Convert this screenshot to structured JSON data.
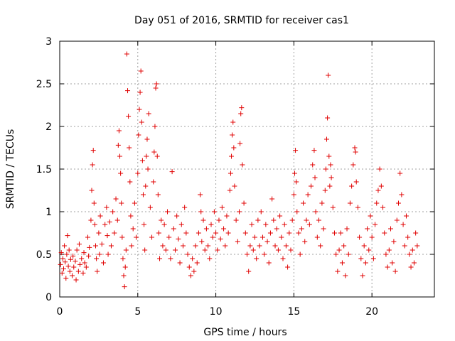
{
  "chart_data": {
    "type": "scatter",
    "title": "Day 051 of 2016, SRMTID for receiver cas1",
    "xlabel": "GPS time / hours",
    "ylabel": "SRMTID / TECUs",
    "xlim": [
      0,
      24
    ],
    "ylim": [
      0,
      3
    ],
    "xticks": [
      0,
      5,
      10,
      15,
      20
    ],
    "yticks": [
      0,
      0.5,
      1,
      1.5,
      2,
      2.5,
      3
    ],
    "xtick_labels": [
      "0",
      "5",
      "10",
      "15",
      "20"
    ],
    "ytick_labels": [
      "0",
      "0.5",
      "1",
      "1.5",
      "2",
      "2.5",
      "3"
    ],
    "grid": true,
    "marker": "+",
    "color": "#e00000",
    "series": [
      {
        "name": "SRMTID",
        "points": [
          [
            0.05,
            0.38
          ],
          [
            0.1,
            0.52
          ],
          [
            0.15,
            0.28
          ],
          [
            0.2,
            0.45
          ],
          [
            0.25,
            0.33
          ],
          [
            0.3,
            0.6
          ],
          [
            0.35,
            0.41
          ],
          [
            0.4,
            0.22
          ],
          [
            0.45,
            0.5
          ],
          [
            0.5,
            0.72
          ],
          [
            0.55,
            0.36
          ],
          [
            0.6,
            0.55
          ],
          [
            0.65,
            0.3
          ],
          [
            0.7,
            0.44
          ],
          [
            0.8,
            0.25
          ],
          [
            0.85,
            0.48
          ],
          [
            0.9,
            0.35
          ],
          [
            1.0,
            0.42
          ],
          [
            1.05,
            0.2
          ],
          [
            1.1,
            0.55
          ],
          [
            1.2,
            0.3
          ],
          [
            1.25,
            0.62
          ],
          [
            1.3,
            0.38
          ],
          [
            1.4,
            0.45
          ],
          [
            1.5,
            0.28
          ],
          [
            1.55,
            0.52
          ],
          [
            1.6,
            0.4
          ],
          [
            1.7,
            0.35
          ],
          [
            1.8,
            0.7
          ],
          [
            1.85,
            0.48
          ],
          [
            1.9,
            0.58
          ],
          [
            2.0,
            0.9
          ],
          [
            2.05,
            1.25
          ],
          [
            2.1,
            1.55
          ],
          [
            2.15,
            1.72
          ],
          [
            2.2,
            1.1
          ],
          [
            2.25,
            0.85
          ],
          [
            2.3,
            0.6
          ],
          [
            2.35,
            0.45
          ],
          [
            2.4,
            0.3
          ],
          [
            2.5,
            0.75
          ],
          [
            2.55,
            0.5
          ],
          [
            2.6,
            0.95
          ],
          [
            2.7,
            0.62
          ],
          [
            2.8,
            0.4
          ],
          [
            2.9,
            0.85
          ],
          [
            3.0,
            1.05
          ],
          [
            3.05,
            0.72
          ],
          [
            3.1,
            0.5
          ],
          [
            3.2,
            0.88
          ],
          [
            3.3,
            0.6
          ],
          [
            3.4,
            1.0
          ],
          [
            3.5,
            0.75
          ],
          [
            3.6,
            1.15
          ],
          [
            3.7,
            0.9
          ],
          [
            3.75,
            1.78
          ],
          [
            3.8,
            1.95
          ],
          [
            3.85,
            1.65
          ],
          [
            3.9,
            1.45
          ],
          [
            3.95,
            1.1
          ],
          [
            4.0,
            0.7
          ],
          [
            4.05,
            0.45
          ],
          [
            4.1,
            0.25
          ],
          [
            4.15,
            0.12
          ],
          [
            4.2,
            0.35
          ],
          [
            4.25,
            0.55
          ],
          [
            4.3,
            2.85
          ],
          [
            4.35,
            2.42
          ],
          [
            4.4,
            2.12
          ],
          [
            4.45,
            1.75
          ],
          [
            4.5,
            1.35
          ],
          [
            4.55,
            0.95
          ],
          [
            4.6,
            0.6
          ],
          [
            4.7,
            0.8
          ],
          [
            4.8,
            1.1
          ],
          [
            4.9,
            0.7
          ],
          [
            5.0,
            1.45
          ],
          [
            5.05,
            1.9
          ],
          [
            5.1,
            2.2
          ],
          [
            5.15,
            2.4
          ],
          [
            5.2,
            2.65
          ],
          [
            5.25,
            2.05
          ],
          [
            5.3,
            1.6
          ],
          [
            5.35,
            1.2
          ],
          [
            5.4,
            0.85
          ],
          [
            5.45,
            0.55
          ],
          [
            5.5,
            1.3
          ],
          [
            5.55,
            1.65
          ],
          [
            5.6,
            1.85
          ],
          [
            5.65,
            1.5
          ],
          [
            5.7,
            2.15
          ],
          [
            5.8,
            1.05
          ],
          [
            5.9,
            0.7
          ],
          [
            6.0,
            1.35
          ],
          [
            6.05,
            1.7
          ],
          [
            6.1,
            2.0
          ],
          [
            6.15,
            2.45
          ],
          [
            6.2,
            2.5
          ],
          [
            6.25,
            1.65
          ],
          [
            6.3,
            1.2
          ],
          [
            6.35,
            0.75
          ],
          [
            6.4,
            0.45
          ],
          [
            6.5,
            0.9
          ],
          [
            6.6,
            0.6
          ],
          [
            6.7,
            0.85
          ],
          [
            6.8,
            0.55
          ],
          [
            6.9,
            1.0
          ],
          [
            7.0,
            0.7
          ],
          [
            7.1,
            0.45
          ],
          [
            7.2,
            1.47
          ],
          [
            7.3,
            0.8
          ],
          [
            7.4,
            0.55
          ],
          [
            7.5,
            0.95
          ],
          [
            7.6,
            0.68
          ],
          [
            7.7,
            0.4
          ],
          [
            7.8,
            0.85
          ],
          [
            7.9,
            0.6
          ],
          [
            8.0,
            1.05
          ],
          [
            8.1,
            0.75
          ],
          [
            8.2,
            0.5
          ],
          [
            8.3,
            0.35
          ],
          [
            8.4,
            0.25
          ],
          [
            8.5,
            0.45
          ],
          [
            8.6,
            0.3
          ],
          [
            8.7,
            0.6
          ],
          [
            8.8,
            0.4
          ],
          [
            8.9,
            0.75
          ],
          [
            9.0,
            1.2
          ],
          [
            9.05,
            1.0
          ],
          [
            9.1,
            0.65
          ],
          [
            9.2,
            0.9
          ],
          [
            9.3,
            0.55
          ],
          [
            9.4,
            0.8
          ],
          [
            9.5,
            0.6
          ],
          [
            9.6,
            0.45
          ],
          [
            9.7,
            0.85
          ],
          [
            9.8,
            0.7
          ],
          [
            9.9,
            1.0
          ],
          [
            10.0,
            0.75
          ],
          [
            10.1,
            0.55
          ],
          [
            10.2,
            0.9
          ],
          [
            10.3,
            0.68
          ],
          [
            10.4,
            1.05
          ],
          [
            10.5,
            0.8
          ],
          [
            10.6,
            0.6
          ],
          [
            10.7,
            0.95
          ],
          [
            10.8,
            0.75
          ],
          [
            10.9,
            1.25
          ],
          [
            10.95,
            1.45
          ],
          [
            11.0,
            1.65
          ],
          [
            11.05,
            1.9
          ],
          [
            11.1,
            2.05
          ],
          [
            11.15,
            1.75
          ],
          [
            11.2,
            1.3
          ],
          [
            11.3,
            0.9
          ],
          [
            11.4,
            0.65
          ],
          [
            11.5,
            1.0
          ],
          [
            11.55,
            1.8
          ],
          [
            11.6,
            2.15
          ],
          [
            11.65,
            2.22
          ],
          [
            11.7,
            1.55
          ],
          [
            11.8,
            1.1
          ],
          [
            11.9,
            0.75
          ],
          [
            12.0,
            0.5
          ],
          [
            12.1,
            0.3
          ],
          [
            12.2,
            0.6
          ],
          [
            12.3,
            0.85
          ],
          [
            12.4,
            0.55
          ],
          [
            12.5,
            0.7
          ],
          [
            12.6,
            0.45
          ],
          [
            12.7,
            0.9
          ],
          [
            12.8,
            0.6
          ],
          [
            12.9,
            1.0
          ],
          [
            13.0,
            0.7
          ],
          [
            13.1,
            0.5
          ],
          [
            13.2,
            0.85
          ],
          [
            13.3,
            0.65
          ],
          [
            13.4,
            0.4
          ],
          [
            13.5,
            0.75
          ],
          [
            13.6,
            1.15
          ],
          [
            13.7,
            0.9
          ],
          [
            13.8,
            0.6
          ],
          [
            13.9,
            0.8
          ],
          [
            14.0,
            0.55
          ],
          [
            14.1,
            0.95
          ],
          [
            14.2,
            0.7
          ],
          [
            14.3,
            0.45
          ],
          [
            14.4,
            0.85
          ],
          [
            14.5,
            0.6
          ],
          [
            14.6,
            0.35
          ],
          [
            14.7,
            0.75
          ],
          [
            14.8,
            0.55
          ],
          [
            14.9,
            0.9
          ],
          [
            15.0,
            1.2
          ],
          [
            15.05,
            1.45
          ],
          [
            15.1,
            1.72
          ],
          [
            15.15,
            1.35
          ],
          [
            15.2,
            1.0
          ],
          [
            15.3,
            0.75
          ],
          [
            15.4,
            0.5
          ],
          [
            15.5,
            0.8
          ],
          [
            15.6,
            1.1
          ],
          [
            15.7,
            0.65
          ],
          [
            15.8,
            0.9
          ],
          [
            15.9,
            1.2
          ],
          [
            16.0,
            0.85
          ],
          [
            16.1,
            1.3
          ],
          [
            16.2,
            1.55
          ],
          [
            16.3,
            1.72
          ],
          [
            16.35,
            1.4
          ],
          [
            16.4,
            1.0
          ],
          [
            16.5,
            0.7
          ],
          [
            16.6,
            0.9
          ],
          [
            16.7,
            0.6
          ],
          [
            16.8,
            1.1
          ],
          [
            16.9,
            0.8
          ],
          [
            17.0,
            1.25
          ],
          [
            17.05,
            1.5
          ],
          [
            17.1,
            1.85
          ],
          [
            17.15,
            2.1
          ],
          [
            17.2,
            2.6
          ],
          [
            17.25,
            1.65
          ],
          [
            17.3,
            1.3
          ],
          [
            17.35,
            1.55
          ],
          [
            17.4,
            1.4
          ],
          [
            17.5,
            1.05
          ],
          [
            17.6,
            0.75
          ],
          [
            17.7,
            0.5
          ],
          [
            17.8,
            0.3
          ],
          [
            17.9,
            0.55
          ],
          [
            18.0,
            0.75
          ],
          [
            18.1,
            0.4
          ],
          [
            18.2,
            0.6
          ],
          [
            18.3,
            0.25
          ],
          [
            18.4,
            0.8
          ],
          [
            18.5,
            0.5
          ],
          [
            18.6,
            1.1
          ],
          [
            18.7,
            1.3
          ],
          [
            18.8,
            1.55
          ],
          [
            18.9,
            1.75
          ],
          [
            18.95,
            1.7
          ],
          [
            19.0,
            1.35
          ],
          [
            19.1,
            1.05
          ],
          [
            19.2,
            0.7
          ],
          [
            19.3,
            0.45
          ],
          [
            19.4,
            0.25
          ],
          [
            19.5,
            0.6
          ],
          [
            19.6,
            0.4
          ],
          [
            19.7,
            0.8
          ],
          [
            19.8,
            0.55
          ],
          [
            19.9,
            0.95
          ],
          [
            20.0,
            0.7
          ],
          [
            20.1,
            0.45
          ],
          [
            20.2,
            0.85
          ],
          [
            20.3,
            1.1
          ],
          [
            20.4,
            1.25
          ],
          [
            20.5,
            1.5
          ],
          [
            20.6,
            1.3
          ],
          [
            20.7,
            1.05
          ],
          [
            20.8,
            0.75
          ],
          [
            20.9,
            0.5
          ],
          [
            21.0,
            0.35
          ],
          [
            21.1,
            0.55
          ],
          [
            21.2,
            0.8
          ],
          [
            21.3,
            0.4
          ],
          [
            21.4,
            0.65
          ],
          [
            21.5,
            0.3
          ],
          [
            21.6,
            0.9
          ],
          [
            21.7,
            1.1
          ],
          [
            21.8,
            1.45
          ],
          [
            21.9,
            1.2
          ],
          [
            22.0,
            0.85
          ],
          [
            22.1,
            0.6
          ],
          [
            22.2,
            0.95
          ],
          [
            22.3,
            0.7
          ],
          [
            22.4,
            0.5
          ],
          [
            22.5,
            0.35
          ],
          [
            22.6,
            0.55
          ],
          [
            22.7,
            0.4
          ],
          [
            22.8,
            0.75
          ],
          [
            22.9,
            0.6
          ]
        ]
      }
    ]
  }
}
